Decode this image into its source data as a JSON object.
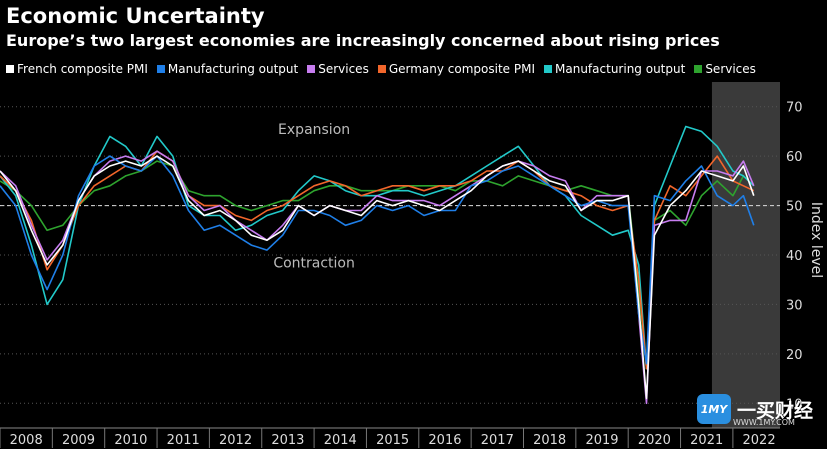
{
  "chart_data": {
    "type": "line",
    "title": "Economic Uncertainty",
    "subtitle": "Europe’s two largest economies are increasingly concerned about rising prices",
    "ylabel": "Index level",
    "ylim": [
      5,
      75
    ],
    "yticks": [
      10,
      20,
      30,
      40,
      50,
      60,
      70
    ],
    "xlim": [
      2008.0,
      2022.9
    ],
    "xticks": [
      "2008",
      "2009",
      "2010",
      "2011",
      "2012",
      "2013",
      "2014",
      "2015",
      "2016",
      "2017",
      "2018",
      "2019",
      "2020",
      "2021",
      "2022"
    ],
    "annotations": [
      {
        "text": "Expansion",
        "x": 2014.0,
        "y": 64.5
      },
      {
        "text": "Contraction",
        "x": 2014.0,
        "y": 37.5
      }
    ],
    "reference_line": 50,
    "shaded_region": [
      2021.6,
      2022.9
    ],
    "colors": {
      "french_composite": "#ffffff",
      "french_manufacturing": "#1f7fe8",
      "french_services": "#c77df0",
      "germany_composite": "#f2662b",
      "germany_manufacturing": "#22c9c9",
      "germany_services": "#2ea32e"
    },
    "series": [
      {
        "name": "French composite PMI",
        "color_key": "french_composite",
        "x": [
          2008.0,
          2008.3,
          2008.6,
          2008.9,
          2009.2,
          2009.5,
          2009.8,
          2010.1,
          2010.4,
          2010.7,
          2011.0,
          2011.3,
          2011.6,
          2011.9,
          2012.2,
          2012.5,
          2012.8,
          2013.1,
          2013.4,
          2013.7,
          2014.0,
          2014.3,
          2014.6,
          2014.9,
          2015.2,
          2015.5,
          2015.8,
          2016.1,
          2016.4,
          2016.7,
          2017.0,
          2017.3,
          2017.6,
          2017.9,
          2018.2,
          2018.5,
          2018.8,
          2019.1,
          2019.4,
          2019.7,
          2020.0,
          2020.2,
          2020.35,
          2020.5,
          2020.8,
          2021.1,
          2021.4,
          2021.7,
          2022.0,
          2022.2,
          2022.4
        ],
        "values": [
          57,
          53,
          45,
          38,
          42,
          51,
          56,
          58,
          59,
          58,
          60,
          58,
          51,
          48,
          49,
          47,
          44,
          43,
          45,
          50,
          48,
          50,
          49,
          48,
          51,
          50,
          51,
          50,
          49,
          51,
          53,
          56,
          58,
          59,
          57,
          55,
          54,
          49,
          51,
          51,
          52,
          30,
          11,
          44,
          50,
          53,
          57,
          56,
          55,
          58,
          52
        ]
      },
      {
        "name": "Manufacturing output",
        "color_key": "french_manufacturing",
        "x": [
          2008.0,
          2008.3,
          2008.6,
          2008.9,
          2009.2,
          2009.5,
          2009.8,
          2010.1,
          2010.4,
          2010.7,
          2011.0,
          2011.3,
          2011.6,
          2011.9,
          2012.2,
          2012.5,
          2012.8,
          2013.1,
          2013.4,
          2013.7,
          2014.0,
          2014.3,
          2014.6,
          2014.9,
          2015.2,
          2015.5,
          2015.8,
          2016.1,
          2016.4,
          2016.7,
          2017.0,
          2017.3,
          2017.6,
          2017.9,
          2018.2,
          2018.5,
          2018.8,
          2019.1,
          2019.4,
          2019.7,
          2020.0,
          2020.2,
          2020.35,
          2020.5,
          2020.8,
          2021.1,
          2021.4,
          2021.7,
          2022.0,
          2022.2,
          2022.4
        ],
        "values": [
          54,
          50,
          40,
          33,
          40,
          52,
          58,
          60,
          58,
          57,
          60,
          56,
          49,
          45,
          46,
          44,
          42,
          41,
          44,
          49,
          49,
          48,
          46,
          47,
          50,
          49,
          50,
          48,
          49,
          49,
          54,
          55,
          57,
          58,
          56,
          54,
          52,
          50,
          51,
          50,
          50,
          28,
          18,
          52,
          51,
          55,
          58,
          52,
          50,
          52,
          46
        ]
      },
      {
        "name": "Services",
        "color_key": "french_services",
        "x": [
          2008.0,
          2008.3,
          2008.6,
          2008.9,
          2009.2,
          2009.5,
          2009.8,
          2010.1,
          2010.4,
          2010.7,
          2011.0,
          2011.3,
          2011.6,
          2011.9,
          2012.2,
          2012.5,
          2012.8,
          2013.1,
          2013.4,
          2013.7,
          2014.0,
          2014.3,
          2014.6,
          2014.9,
          2015.2,
          2015.5,
          2015.8,
          2016.1,
          2016.4,
          2016.7,
          2017.0,
          2017.3,
          2017.6,
          2017.9,
          2018.2,
          2018.5,
          2018.8,
          2019.1,
          2019.4,
          2019.7,
          2020.0,
          2020.2,
          2020.35,
          2020.5,
          2020.8,
          2021.1,
          2021.4,
          2021.7,
          2022.0,
          2022.2,
          2022.4
        ],
        "values": [
          57,
          54,
          46,
          39,
          43,
          51,
          56,
          59,
          60,
          59,
          61,
          59,
          52,
          49,
          50,
          47,
          45,
          43,
          46,
          50,
          48,
          50,
          49,
          49,
          52,
          51,
          51,
          51,
          50,
          52,
          54,
          56,
          58,
          59,
          58,
          56,
          55,
          49,
          52,
          52,
          52,
          28,
          10,
          46,
          47,
          47,
          57,
          57,
          56,
          59,
          54
        ]
      },
      {
        "name": "Germany composite PMI",
        "color_key": "germany_composite",
        "x": [
          2008.0,
          2008.3,
          2008.6,
          2008.9,
          2009.2,
          2009.5,
          2009.8,
          2010.1,
          2010.4,
          2010.7,
          2011.0,
          2011.3,
          2011.6,
          2011.9,
          2012.2,
          2012.5,
          2012.8,
          2013.1,
          2013.4,
          2013.7,
          2014.0,
          2014.3,
          2014.6,
          2014.9,
          2015.2,
          2015.5,
          2015.8,
          2016.1,
          2016.4,
          2016.7,
          2017.0,
          2017.3,
          2017.6,
          2017.9,
          2018.2,
          2018.5,
          2018.8,
          2019.1,
          2019.4,
          2019.7,
          2020.0,
          2020.2,
          2020.35,
          2020.5,
          2020.8,
          2021.1,
          2021.4,
          2021.7,
          2022.0,
          2022.2,
          2022.4
        ],
        "values": [
          56,
          53,
          47,
          37,
          42,
          50,
          54,
          56,
          58,
          57,
          61,
          59,
          52,
          50,
          50,
          48,
          47,
          49,
          50,
          52,
          54,
          55,
          54,
          52,
          53,
          54,
          54,
          53,
          54,
          54,
          55,
          57,
          57,
          59,
          57,
          54,
          53,
          52,
          50,
          49,
          50,
          35,
          17,
          47,
          54,
          52,
          56,
          60,
          55,
          54,
          53
        ]
      },
      {
        "name": "Manufacturing output",
        "color_key": "germany_manufacturing",
        "x": [
          2008.0,
          2008.3,
          2008.6,
          2008.9,
          2009.2,
          2009.5,
          2009.8,
          2010.1,
          2010.4,
          2010.7,
          2011.0,
          2011.3,
          2011.6,
          2011.9,
          2012.2,
          2012.5,
          2012.8,
          2013.1,
          2013.4,
          2013.7,
          2014.0,
          2014.3,
          2014.6,
          2014.9,
          2015.2,
          2015.5,
          2015.8,
          2016.1,
          2016.4,
          2016.7,
          2017.0,
          2017.3,
          2017.6,
          2017.9,
          2018.2,
          2018.5,
          2018.8,
          2019.1,
          2019.4,
          2019.7,
          2020.0,
          2020.2,
          2020.35,
          2020.5,
          2020.8,
          2021.1,
          2021.4,
          2021.7,
          2022.0,
          2022.2,
          2022.4
        ],
        "values": [
          56,
          52,
          42,
          30,
          35,
          50,
          58,
          64,
          62,
          58,
          64,
          60,
          50,
          48,
          48,
          45,
          46,
          48,
          49,
          53,
          56,
          55,
          53,
          52,
          52,
          53,
          53,
          52,
          53,
          54,
          56,
          58,
          60,
          62,
          58,
          54,
          52,
          48,
          46,
          44,
          45,
          38,
          17,
          50,
          58,
          66,
          65,
          62,
          57,
          56,
          54
        ]
      },
      {
        "name": "Services",
        "color_key": "germany_services",
        "x": [
          2008.0,
          2008.3,
          2008.6,
          2008.9,
          2009.2,
          2009.5,
          2009.8,
          2010.1,
          2010.4,
          2010.7,
          2011.0,
          2011.3,
          2011.6,
          2011.9,
          2012.2,
          2012.5,
          2012.8,
          2013.1,
          2013.4,
          2013.7,
          2014.0,
          2014.3,
          2014.6,
          2014.9,
          2015.2,
          2015.5,
          2015.8,
          2016.1,
          2016.4,
          2016.7,
          2017.0,
          2017.3,
          2017.6,
          2017.9,
          2018.2,
          2018.5,
          2018.8,
          2019.1,
          2019.4,
          2019.7,
          2020.0,
          2020.2,
          2020.35,
          2020.5,
          2020.8,
          2021.1,
          2021.4,
          2021.7,
          2022.0,
          2022.2,
          2022.4
        ],
        "values": [
          55,
          53,
          50,
          45,
          46,
          50,
          53,
          54,
          56,
          57,
          59,
          58,
          53,
          52,
          52,
          50,
          49,
          50,
          51,
          51,
          53,
          54,
          54,
          53,
          53,
          53,
          54,
          54,
          54,
          53,
          55,
          55,
          54,
          56,
          55,
          54,
          53,
          54,
          53,
          52,
          52,
          33,
          17,
          47,
          49,
          46,
          52,
          55,
          52,
          56,
          54
        ]
      }
    ],
    "legend": [
      "French composite PMI",
      "Manufacturing output",
      "Services",
      "Germany composite PMI",
      "Manufacturing output",
      "Services"
    ]
  },
  "watermark": {
    "logo": "1MY",
    "text": "一买财经",
    "sub": "WWW.1MY.COM"
  }
}
